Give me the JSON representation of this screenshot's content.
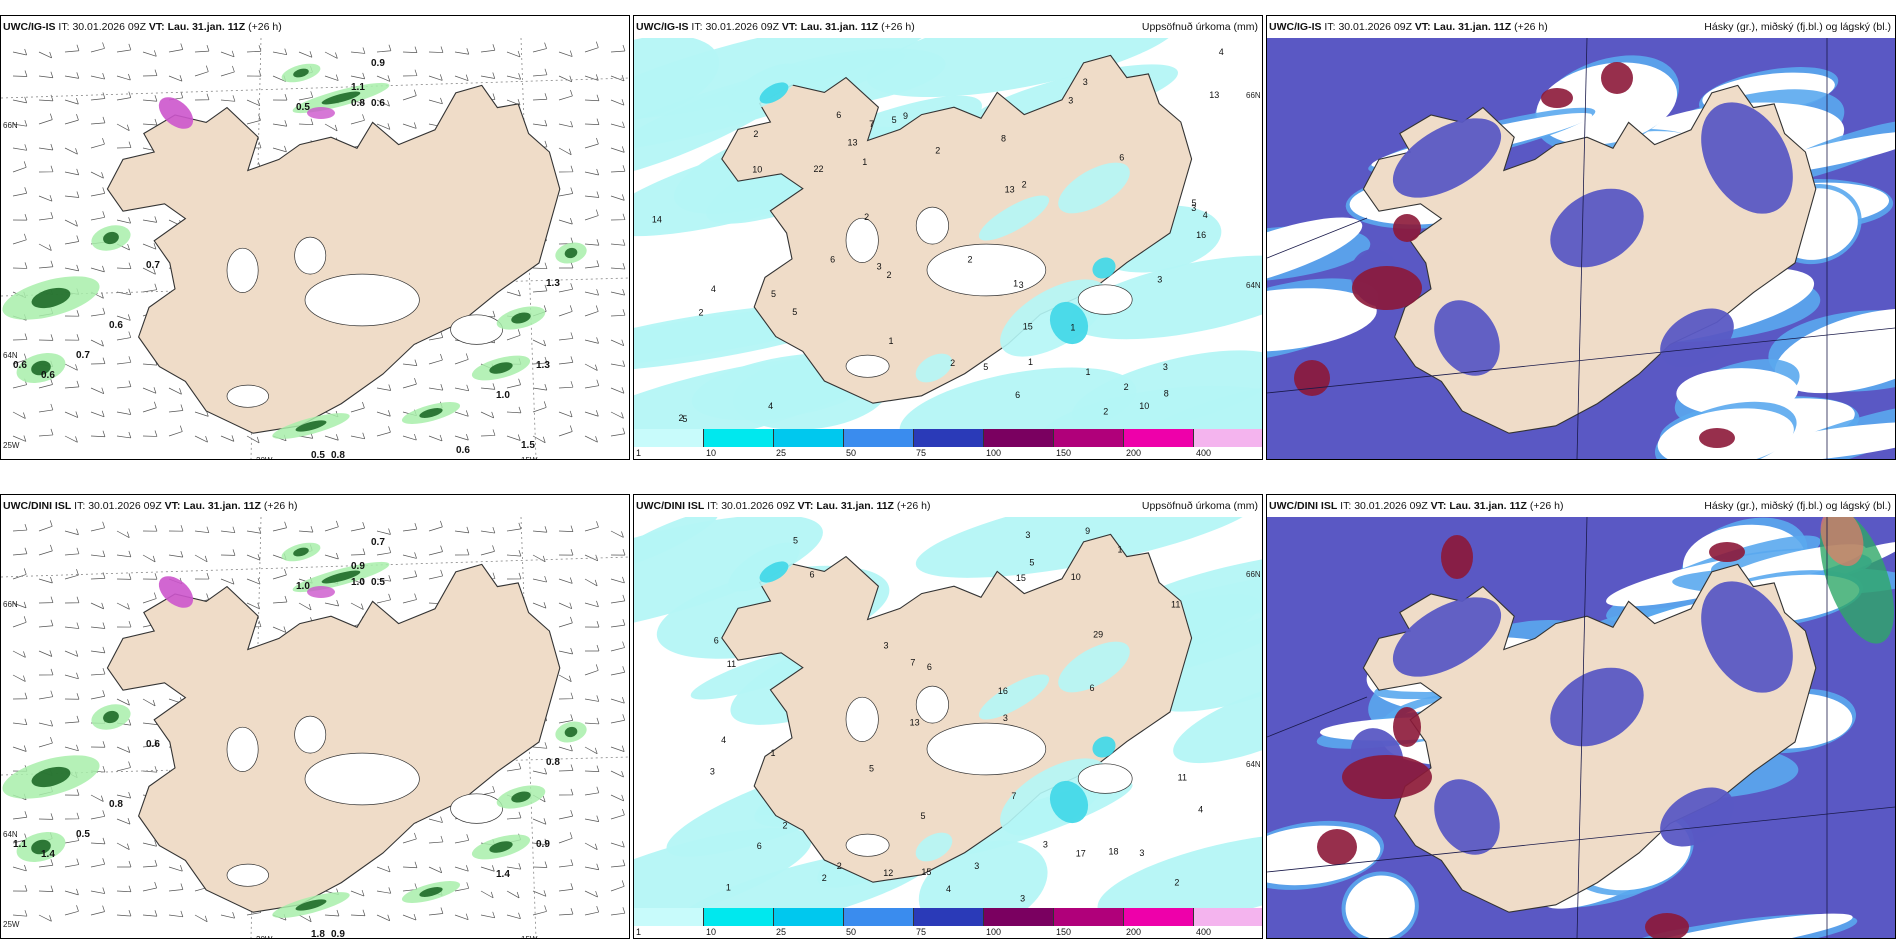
{
  "panels": [
    {
      "model": "UWC/IG-IS",
      "it_label": "IT:",
      "it": "30.01.2026 09Z",
      "vt_label": "VT:",
      "vt": "Lau. 31.jan. 11Z",
      "lead": "(+26 h)",
      "title": ""
    },
    {
      "model": "UWC/IG-IS",
      "it_label": "IT:",
      "it": "30.01.2026 09Z",
      "vt_label": "VT:",
      "vt": "Lau. 31.jan. 11Z",
      "lead": "(+26 h)",
      "title": "Uppsöfnuð úrkoma (mm)"
    },
    {
      "model": "UWC/IG-IS",
      "it_label": "IT:",
      "it": "30.01.2026 09Z",
      "vt_label": "VT:",
      "vt": "Lau. 31.jan. 11Z",
      "lead": "(+26 h)",
      "title": "Hásky (gr.), miðský (fj.bl.) og lágský (bl.)"
    },
    {
      "model": "UWC/DINI ISL",
      "it_label": "IT:",
      "it": "30.01.2026 09Z",
      "vt_label": "VT:",
      "vt": "Lau. 31.jan. 11Z",
      "lead": "(+26 h)",
      "title": ""
    },
    {
      "model": "UWC/DINI ISL",
      "it_label": "IT:",
      "it": "30.01.2026 09Z",
      "vt_label": "VT:",
      "vt": "Lau. 31.jan. 11Z",
      "lead": "(+26 h)",
      "title": "Uppsöfnuð úrkoma (mm)"
    },
    {
      "model": "UWC/DINI ISL",
      "it_label": "IT:",
      "it": "30.01.2026 09Z",
      "vt_label": "VT:",
      "vt": "Lau. 31.jan. 11Z",
      "lead": "(+26 h)",
      "title": "Hásky (gr.), miðský (fj.bl.) og lágský (bl.)"
    }
  ],
  "axis_labels": {
    "lat66": "66N",
    "lat64": "64N",
    "lon25": "25W",
    "lon20": "20W",
    "lon15": "15W"
  },
  "colorbar": {
    "ticks": [
      "1",
      "10",
      "25",
      "50",
      "75",
      "100",
      "150",
      "200",
      "400"
    ],
    "colors": [
      "#c8fbfb",
      "#00e8ee",
      "#00c8ee",
      "#3a8cee",
      "#2a3ab8",
      "#7a0060",
      "#b0007a",
      "#ee00aa",
      "#f4b4ee"
    ]
  },
  "colors": {
    "land": "#efdcc8",
    "coast": "#333333",
    "ice": "#ffffff",
    "precip_light": "#b4f6f6",
    "precip_mid": "#44d8e8",
    "green_light": "#a8eeaa",
    "green_dark": "#1e6a28",
    "magenta": "#cc55cc",
    "mid_cloud": "#5a58c4",
    "high_cloud": "#8c1838",
    "low_cloud": "#5aa8ee"
  },
  "wind_labels": {
    "ig": [
      "0.9",
      "0.5",
      "1.1",
      "0.8",
      "0.6",
      "0.7",
      "0.6",
      "0.6",
      "0.7",
      "0.6",
      "1.3",
      "1.3",
      "1.0",
      "0.8",
      "0.5",
      "0.6",
      "1.5"
    ],
    "dini": [
      "0.7",
      "1.0",
      "0.9",
      "1.0",
      "0.5",
      "0.6",
      "0.8",
      "1.1",
      "0.5",
      "1.4",
      "0.9",
      "0.8",
      "1.4",
      "0.9",
      "1.8"
    ]
  },
  "precip_labels": {
    "ig": [
      "1",
      "5",
      "4",
      "5",
      "5",
      "3",
      "3",
      "8",
      "3",
      "5",
      "13",
      "14",
      "1",
      "2",
      "2",
      "3",
      "2",
      "1",
      "1",
      "2",
      "1",
      "2",
      "4",
      "10",
      "6",
      "16",
      "22",
      "15",
      "13",
      "7",
      "3",
      "2",
      "6",
      "5",
      "4",
      "8",
      "2",
      "6",
      "4",
      "13",
      "10",
      "6",
      "9",
      "3",
      "2",
      "1",
      "5",
      "2",
      "3",
      "2",
      "2"
    ],
    "dini": [
      "2",
      "3",
      "3",
      "5",
      "15",
      "17",
      "12",
      "6",
      "1",
      "4",
      "3",
      "1",
      "3",
      "2",
      "6",
      "7",
      "4",
      "3",
      "13",
      "16",
      "10",
      "5",
      "11",
      "29",
      "6",
      "9",
      "3",
      "11",
      "5",
      "4",
      "6",
      "3",
      "11",
      "1",
      "2",
      "6",
      "2",
      "5",
      "15",
      "18",
      "3",
      "7"
    ]
  }
}
